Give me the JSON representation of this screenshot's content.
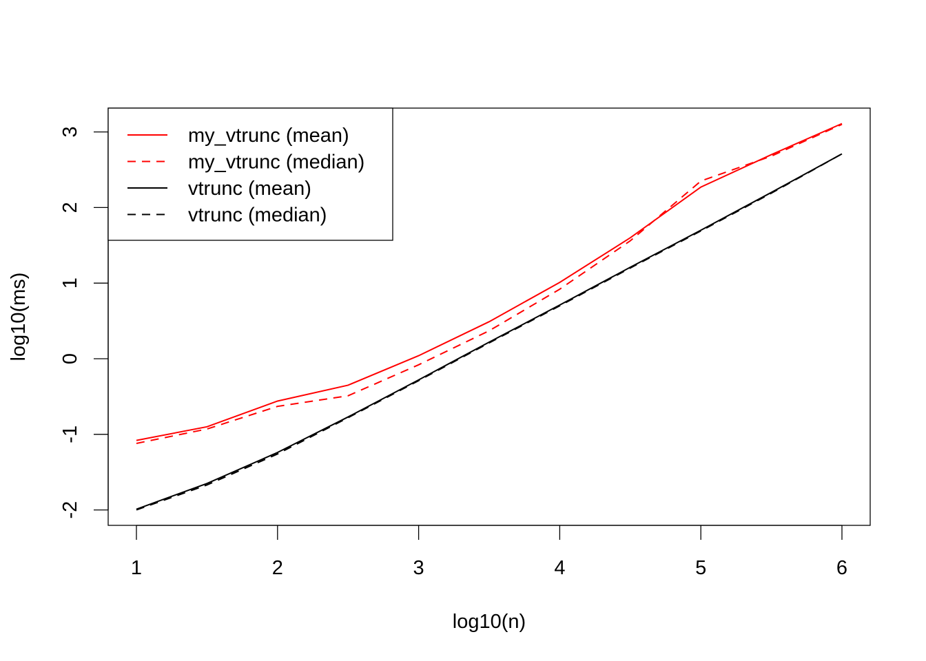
{
  "chart_data": {
    "type": "line",
    "title": "",
    "xlabel": "log10(n)",
    "ylabel": "log10(ms)",
    "xlim": [
      0.8,
      6.2
    ],
    "ylim": [
      -2.2,
      3.32
    ],
    "xticks": [
      "1",
      "2",
      "3",
      "4",
      "5",
      "6"
    ],
    "yticks": [
      "-2",
      "-1",
      "0",
      "1",
      "2",
      "3"
    ],
    "x": [
      1,
      1.5,
      2,
      2.5,
      3,
      3.5,
      4,
      4.5,
      5,
      5.5,
      6
    ],
    "series": [
      {
        "name": "my_vtrunc (mean)",
        "color": "#ff0000",
        "dash": "solid",
        "values": [
          -1.08,
          -0.9,
          -0.56,
          -0.35,
          0.04,
          0.49,
          1.01,
          1.6,
          2.27,
          2.7,
          3.11
        ]
      },
      {
        "name": "my_vtrunc (median)",
        "color": "#ff0000",
        "dash": "dashed",
        "values": [
          -1.12,
          -0.93,
          -0.63,
          -0.49,
          -0.08,
          0.37,
          0.92,
          1.56,
          2.35,
          2.68,
          3.1
        ]
      },
      {
        "name": "vtrunc (mean)",
        "color": "#000000",
        "dash": "solid",
        "values": [
          -1.99,
          -1.65,
          -1.24,
          -0.77,
          -0.28,
          0.22,
          0.71,
          1.21,
          1.7,
          2.2,
          2.71
        ]
      },
      {
        "name": "vtrunc (median)",
        "color": "#000000",
        "dash": "dashed",
        "values": [
          -2.0,
          -1.67,
          -1.26,
          -0.78,
          -0.29,
          0.21,
          0.7,
          1.2,
          1.69,
          2.19,
          2.71
        ]
      }
    ],
    "legend_position": "top-left",
    "grid": false
  }
}
